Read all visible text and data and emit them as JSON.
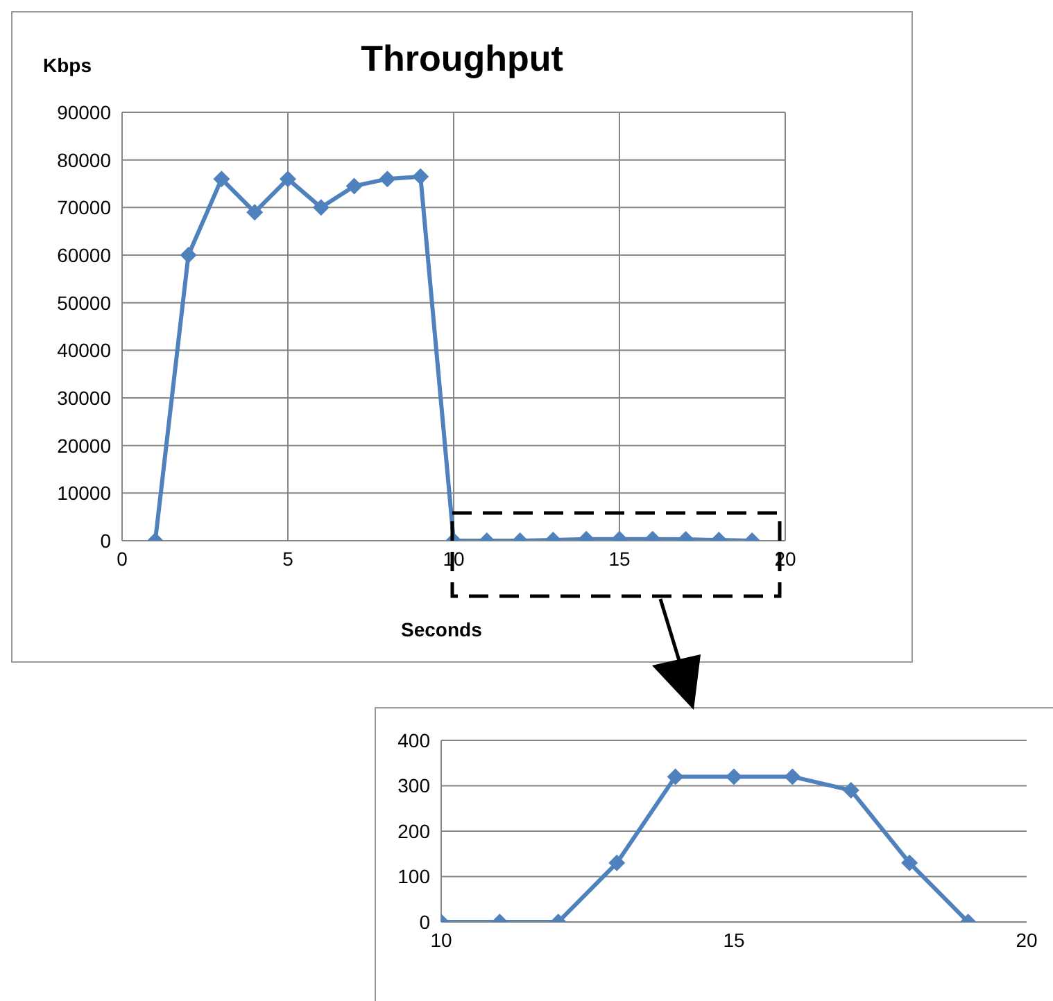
{
  "chart_data": [
    {
      "type": "line",
      "title": "Throughput",
      "xlabel": "Seconds",
      "ylabel": "Kbps",
      "x": [
        1,
        2,
        3,
        4,
        5,
        6,
        7,
        8,
        9,
        10,
        11,
        12,
        13,
        14,
        15,
        16,
        17,
        18,
        19
      ],
      "series": [
        {
          "color": "#4f81bd",
          "values": [
            0,
            60000,
            76000,
            69000,
            76000,
            70000,
            74500,
            76000,
            76500,
            0,
            0,
            0,
            130,
            320,
            320,
            320,
            290,
            130,
            0
          ]
        }
      ],
      "xlim": [
        0,
        20
      ],
      "xticks": [
        0,
        5,
        10,
        15,
        20
      ],
      "ylim": [
        0,
        90000
      ],
      "yticks": [
        0,
        10000,
        20000,
        30000,
        40000,
        50000,
        60000,
        70000,
        80000,
        90000
      ],
      "grid": true,
      "marker": "diamond",
      "line_style": "solid"
    },
    {
      "type": "line",
      "x": [
        10,
        11,
        12,
        13,
        14,
        15,
        16,
        17,
        18,
        19
      ],
      "series": [
        {
          "color": "#4f81bd",
          "values": [
            0,
            0,
            0,
            130,
            320,
            320,
            320,
            290,
            130,
            0
          ]
        }
      ],
      "xlim": [
        10,
        20
      ],
      "xticks": [
        10,
        15,
        20
      ],
      "ylim": [
        0,
        400
      ],
      "yticks": [
        0,
        100,
        200,
        300,
        400
      ],
      "grid": "y",
      "marker": "diamond",
      "line_style": "solid"
    }
  ]
}
